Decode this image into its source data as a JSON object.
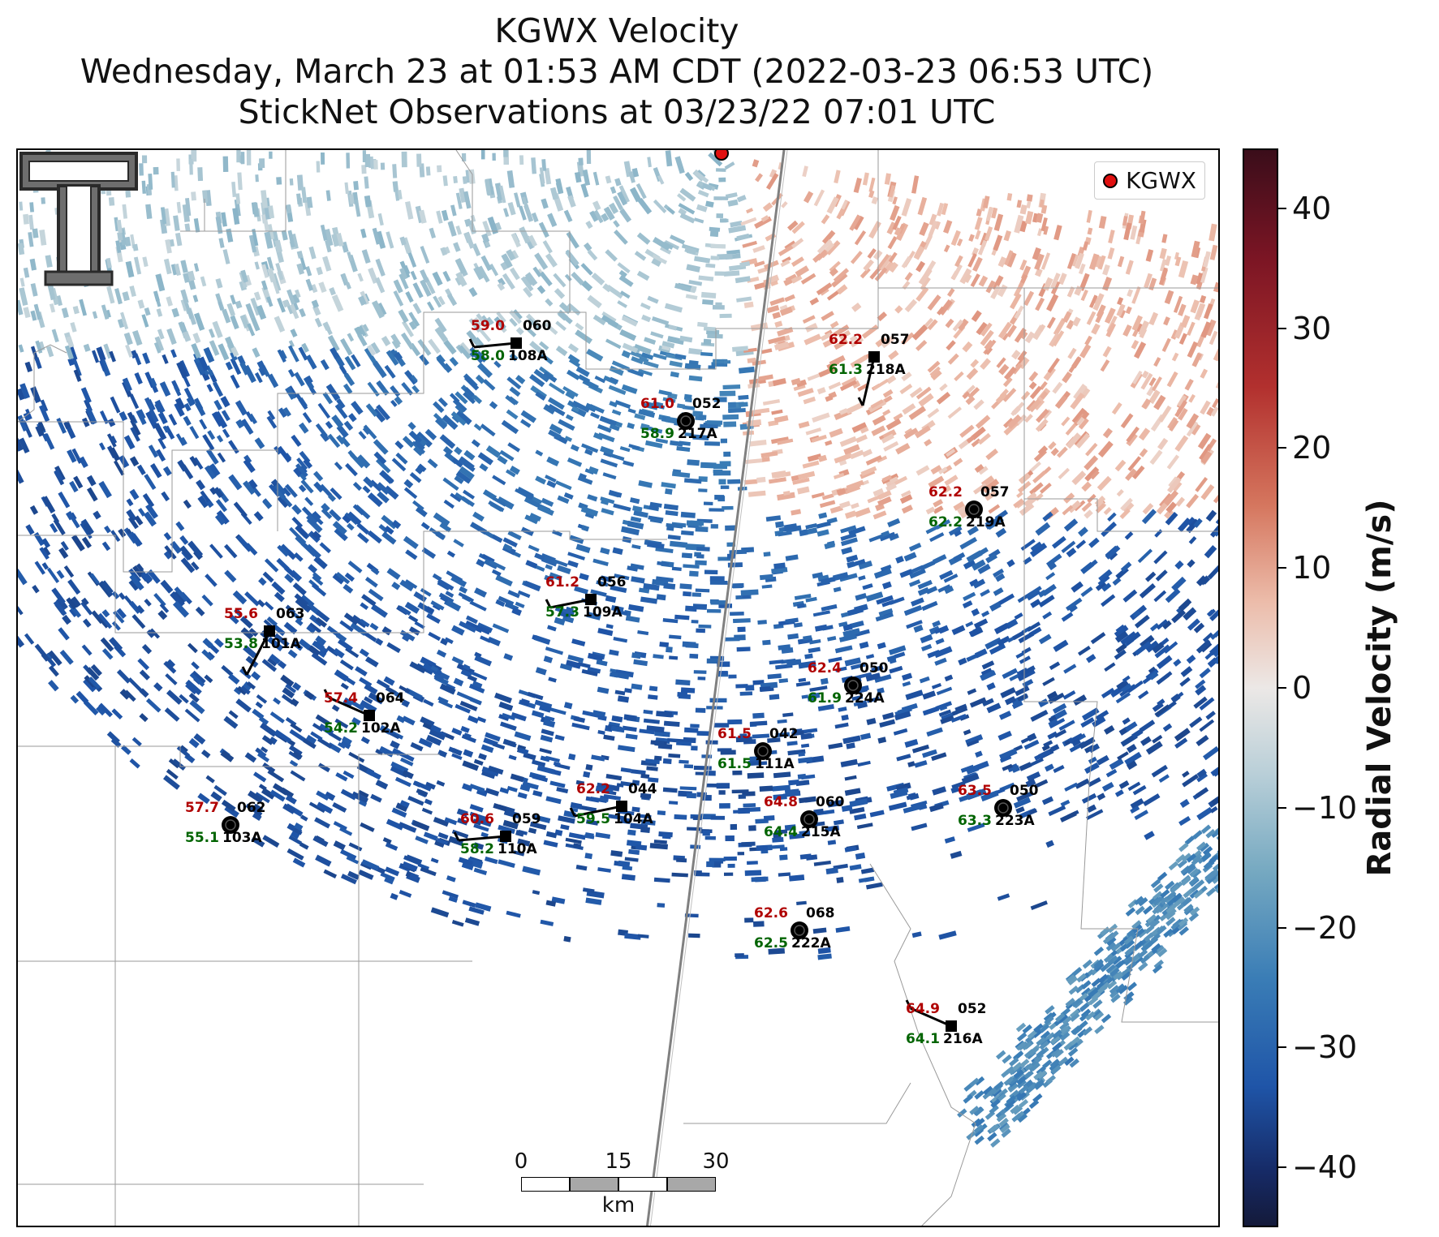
{
  "title": {
    "line1": "KGWX Velocity",
    "line2": "Wednesday, March 23 at 01:53 AM CDT (2022-03-23 06:53 UTC)",
    "line3": "StickNet Observations at 03/23/22 07:01 UTC"
  },
  "legend": {
    "label": "KGWX",
    "marker_color": "#e01010"
  },
  "colorbar": {
    "label": "Radial Velocity (m/s)",
    "ticks": [
      "40",
      "30",
      "20",
      "10",
      "0",
      "−10",
      "−20",
      "−30",
      "−40"
    ],
    "range": [
      -45,
      45
    ]
  },
  "scalebar": {
    "labels": [
      "0",
      "15",
      "30"
    ],
    "unit": "km"
  },
  "stations": [
    {
      "id": "108A",
      "temp": "59.0",
      "dew": "58.0",
      "dir": "060",
      "marker": "square"
    },
    {
      "id": "218A",
      "temp": "62.2",
      "dew": "61.3",
      "dir": "057",
      "marker": "square"
    },
    {
      "id": "217A",
      "temp": "61.0",
      "dew": "58.9",
      "dir": "052",
      "marker": "circle"
    },
    {
      "id": "219A",
      "temp": "62.2",
      "dew": "62.2",
      "dir": "057",
      "marker": "circle"
    },
    {
      "id": "109A",
      "temp": "61.2",
      "dew": "57.3",
      "dir": "056",
      "marker": "square"
    },
    {
      "id": "101A",
      "temp": "55.6",
      "dew": "53.8",
      "dir": "063",
      "marker": "square"
    },
    {
      "id": "224A",
      "temp": "62.4",
      "dew": "61.9",
      "dir": "050",
      "marker": "circle"
    },
    {
      "id": "102A",
      "temp": "57.4",
      "dew": "54.2",
      "dir": "064",
      "marker": "square"
    },
    {
      "id": "111A",
      "temp": "61.5",
      "dew": "61.5",
      "dir": "042",
      "marker": "circle"
    },
    {
      "id": "104A",
      "temp": "62.2",
      "dew": "59.5",
      "dir": "044",
      "marker": "square"
    },
    {
      "id": "215A",
      "temp": "64.8",
      "dew": "64.4",
      "dir": "060",
      "marker": "circle"
    },
    {
      "id": "223A",
      "temp": "63.5",
      "dew": "63.3",
      "dir": "050",
      "marker": "circle"
    },
    {
      "id": "103A",
      "temp": "57.7",
      "dew": "55.1",
      "dir": "062",
      "marker": "circle"
    },
    {
      "id": "110A",
      "temp": "60.6",
      "dew": "58.2",
      "dir": "059",
      "marker": "square"
    },
    {
      "id": "222A",
      "temp": "62.6",
      "dew": "62.5",
      "dir": "068",
      "marker": "circle"
    },
    {
      "id": "216A",
      "temp": "64.9",
      "dew": "64.1",
      "dir": "052",
      "marker": "square"
    }
  ],
  "icons": {
    "logo": "university-logo-icon",
    "radar_site": "radar-site-icon"
  }
}
